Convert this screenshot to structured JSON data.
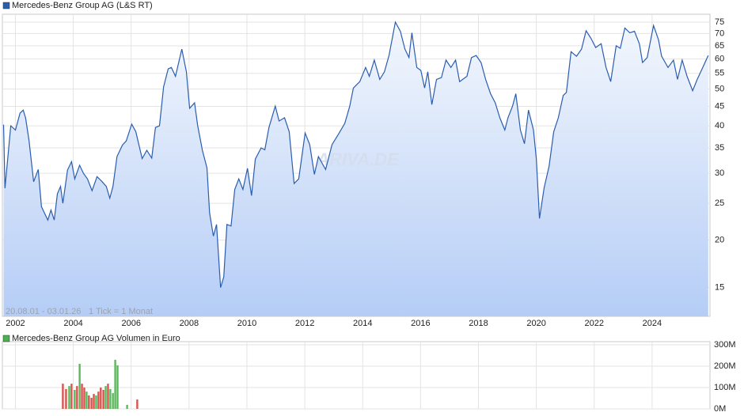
{
  "chart_data": [
    {
      "type": "area",
      "series": [
        {
          "name": "Mercedes-Benz Group AG (L&S RT)",
          "color": "#2a5db0",
          "values": [
            40.3,
            27.4,
            40,
            39,
            43.2,
            44,
            42,
            36.7,
            28.5,
            30.7,
            24.5,
            22.6,
            24,
            22.6,
            26.5,
            27.7,
            25,
            30.6,
            32.2,
            29,
            31.5,
            30,
            29,
            27,
            29.4,
            28.5,
            27.7,
            25.8,
            27.7,
            33.2,
            35.6,
            36.5,
            40.4,
            38.6,
            32.8,
            34.5,
            32.9,
            39.6,
            40,
            50.7,
            56.5,
            57,
            54,
            63.7,
            55.5,
            44.5,
            46,
            40,
            34.5,
            31,
            23.6,
            20.5,
            22,
            15,
            16,
            22,
            21.8,
            27.2,
            29,
            27.2,
            30.9,
            26.2,
            32.7,
            35,
            34.6,
            39.6,
            45.1,
            41.2,
            42,
            38.6,
            28.2,
            29,
            38.3,
            35.7,
            29.8,
            33.2,
            30.7,
            35.7,
            38,
            40.6,
            45,
            50.3,
            52.3,
            57,
            54,
            59.6,
            53,
            55.5,
            61.3,
            75,
            71,
            63.7,
            60.5,
            70.3,
            57,
            56,
            50.3,
            55.5,
            45.5,
            53,
            53.6,
            59.6,
            57,
            59.6,
            52.3,
            54,
            60.5,
            61.3,
            58.7,
            53,
            48.6,
            46,
            42,
            39,
            42,
            45.1,
            48.6,
            39,
            35.9,
            44,
            39,
            32.8,
            22.8,
            27.5,
            31.3,
            38.6,
            42,
            48.1,
            49,
            62.7,
            61,
            63.7,
            71.2,
            68,
            64.3,
            65.8,
            57,
            52.3,
            65,
            64,
            72.4,
            70.3,
            71,
            65.8,
            58.7,
            60.5,
            73.5,
            67.5,
            61,
            57,
            59.6,
            53,
            59.6,
            54,
            49.5,
            53,
            57,
            61.3
          ]
        }
      ],
      "x": [
        2001.59,
        2001.64,
        2001.84,
        2002.0,
        2002.16,
        2002.27,
        2002.35,
        2002.47,
        2002.63,
        2002.79,
        2002.9,
        2003.12,
        2003.23,
        2003.34,
        2003.45,
        2003.56,
        2003.64,
        2003.8,
        2003.94,
        2004.05,
        2004.22,
        2004.35,
        2004.49,
        2004.65,
        2004.82,
        2005.0,
        2005.14,
        2005.26,
        2005.37,
        2005.51,
        2005.7,
        2005.83,
        2006.02,
        2006.16,
        2006.38,
        2006.54,
        2006.71,
        2006.84,
        2006.98,
        2007.12,
        2007.28,
        2007.39,
        2007.53,
        2007.75,
        2007.91,
        2008.02,
        2008.19,
        2008.3,
        2008.46,
        2008.62,
        2008.71,
        2008.84,
        2008.95,
        2009.09,
        2009.2,
        2009.31,
        2009.45,
        2009.58,
        2009.72,
        2009.86,
        2010.02,
        2010.16,
        2010.29,
        2010.49,
        2010.62,
        2010.76,
        2010.98,
        2011.11,
        2011.3,
        2011.46,
        2011.63,
        2011.79,
        2012.01,
        2012.17,
        2012.33,
        2012.47,
        2012.72,
        2012.94,
        2013.16,
        2013.38,
        2013.55,
        2013.68,
        2013.9,
        2014.1,
        2014.23,
        2014.4,
        2014.59,
        2014.75,
        2014.91,
        2015.13,
        2015.3,
        2015.46,
        2015.6,
        2015.7,
        2015.87,
        2016.01,
        2016.14,
        2016.25,
        2016.39,
        2016.55,
        2016.72,
        2016.88,
        2017.05,
        2017.21,
        2017.35,
        2017.6,
        2017.76,
        2017.92,
        2018.09,
        2018.25,
        2018.42,
        2018.58,
        2018.74,
        2018.91,
        2019.02,
        2019.18,
        2019.29,
        2019.45,
        2019.59,
        2019.73,
        2019.9,
        2020.0,
        2020.11,
        2020.27,
        2020.44,
        2020.6,
        2020.76,
        2020.93,
        2021.04,
        2021.2,
        2021.39,
        2021.56,
        2021.72,
        2021.89,
        2022.05,
        2022.24,
        2022.41,
        2022.57,
        2022.76,
        2022.9,
        2023.06,
        2023.23,
        2023.39,
        2023.56,
        2023.67,
        2023.83,
        2024.05,
        2024.22,
        2024.33,
        2024.55,
        2024.74,
        2024.88,
        2025.04,
        2025.21,
        2025.4,
        2025.56,
        2025.75,
        2025.94
      ],
      "xlim": [
        2001.55,
        2026.0
      ],
      "xticks": [
        2002,
        2004,
        2006,
        2008,
        2010,
        2012,
        2014,
        2016,
        2018,
        2020,
        2022,
        2024
      ],
      "ylim": [
        12.6,
        78.7
      ],
      "yticks": [
        15,
        20,
        25,
        30,
        35,
        40,
        45,
        50,
        55,
        60,
        65,
        70,
        75
      ],
      "log_scale": true,
      "grid": true,
      "annotations": [
        "20.08.01 - 03.01.26",
        "1 Tick = 1 Monat"
      ],
      "watermark": "ARIVA.DE"
    },
    {
      "type": "bar",
      "series": [
        {
          "name": "Mercedes-Benz Group AG Volumen in Euro",
          "color": "#4caf50",
          "values": [
            118000000,
            93000000,
            107000000,
            118000000,
            89000000,
            107000000,
            211000000,
            118000000,
            100000000,
            81000000,
            63000000,
            52000000,
            70000000,
            63000000,
            81000000,
            100000000,
            89000000,
            107000000,
            118000000,
            93000000,
            74000000,
            230000000,
            204000000,
            19000000,
            44000000
          ],
          "colors": [
            "#d9534f",
            "#d9534f",
            "#5cb85c",
            "#d9534f",
            "#5cb85c",
            "#d9534f",
            "#5cb85c",
            "#d9534f",
            "#d9534f",
            "#5cb85c",
            "#d9534f",
            "#d9534f",
            "#d9534f",
            "#5cb85c",
            "#d9534f",
            "#d9534f",
            "#d9534f",
            "#5cb85c",
            "#d9534f",
            "#5cb85c",
            "#5cb85c",
            "#5cb85c",
            "#5cb85c",
            "#5cb85c",
            "#d9534f"
          ]
        }
      ],
      "x": [
        2003.64,
        2003.75,
        2003.86,
        2003.94,
        2004.05,
        2004.13,
        2004.22,
        2004.3,
        2004.38,
        2004.46,
        2004.54,
        2004.63,
        2004.71,
        2004.79,
        2004.87,
        2004.95,
        2005.04,
        2005.12,
        2005.2,
        2005.28,
        2005.37,
        2005.45,
        2005.53,
        2005.86,
        2006.21
      ],
      "xlim": [
        2001.55,
        2026.0
      ],
      "ylim": [
        0,
        315000000
      ],
      "yticks": [
        {
          "value": 0,
          "label": "0M"
        },
        {
          "value": 100000000,
          "label": "100M"
        },
        {
          "value": 200000000,
          "label": "200M"
        },
        {
          "value": 300000000,
          "label": "300M"
        }
      ],
      "grid": true
    }
  ]
}
